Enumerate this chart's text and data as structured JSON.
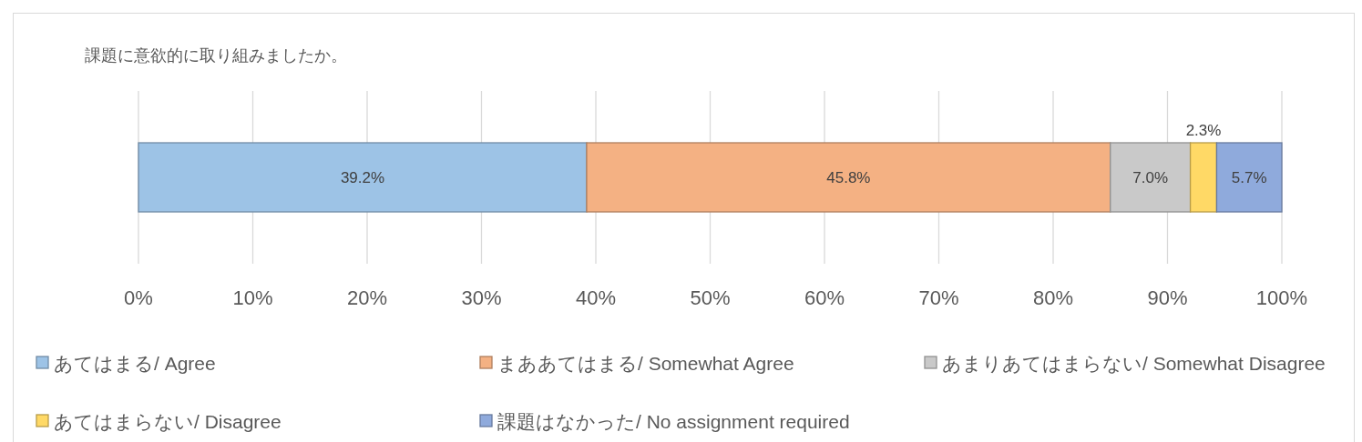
{
  "chart_data": {
    "type": "bar",
    "title": "課題に意欲的に取り組みましたか。",
    "orientation": "horizontal",
    "stacked": true,
    "categories": [
      null
    ],
    "series": [
      {
        "name": "あてはまる/ Agree",
        "color": "#9dc3e6",
        "values": [
          39.2
        ],
        "value_labels": [
          "39.2%"
        ]
      },
      {
        "name": "まああてはまる/ Somewhat Agree",
        "color": "#f4b183",
        "values": [
          45.8
        ],
        "value_labels": [
          "45.8%"
        ]
      },
      {
        "name": "あまりあてはまらない/ Somewhat Disagree",
        "color": "#c9c9c9",
        "values": [
          7.0
        ],
        "value_labels": [
          "7.0%"
        ]
      },
      {
        "name": "あてはまらない/ Disagree",
        "color": "#ffd966",
        "values": [
          2.3
        ],
        "value_labels": [
          "2.3%"
        ]
      },
      {
        "name": "課題はなかった/ No assignment required",
        "color": "#8faadc",
        "values": [
          5.7
        ],
        "value_labels": [
          "5.7%"
        ]
      }
    ],
    "xlim": [
      0,
      100
    ],
    "xticks": [
      {
        "value": 0,
        "label": "0%"
      },
      {
        "value": 10,
        "label": "10%"
      },
      {
        "value": 20,
        "label": "20%"
      },
      {
        "value": 30,
        "label": "30%"
      },
      {
        "value": 40,
        "label": "40%"
      },
      {
        "value": 50,
        "label": "50%"
      },
      {
        "value": 60,
        "label": "60%"
      },
      {
        "value": 70,
        "label": "70%"
      },
      {
        "value": 80,
        "label": "80%"
      },
      {
        "value": 90,
        "label": "90%"
      },
      {
        "value": 100,
        "label": "100%"
      }
    ],
    "grid": "x",
    "legend": "bottom"
  }
}
